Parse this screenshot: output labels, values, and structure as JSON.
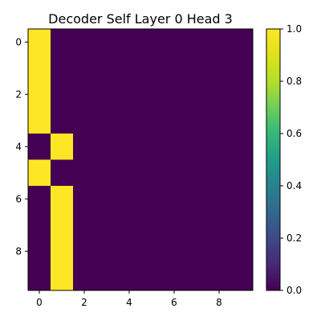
{
  "chart_data": {
    "type": "heatmap",
    "title": "Decoder Self Layer 0 Head 3",
    "rows": 10,
    "cols": 10,
    "values": [
      [
        1,
        0,
        0,
        0,
        0,
        0,
        0,
        0,
        0,
        0
      ],
      [
        1,
        0,
        0,
        0,
        0,
        0,
        0,
        0,
        0,
        0
      ],
      [
        1,
        0,
        0,
        0,
        0,
        0,
        0,
        0,
        0,
        0
      ],
      [
        1,
        0,
        0,
        0,
        0,
        0,
        0,
        0,
        0,
        0
      ],
      [
        0,
        1,
        0,
        0,
        0,
        0,
        0,
        0,
        0,
        0
      ],
      [
        1,
        0,
        0,
        0,
        0,
        0,
        0,
        0,
        0,
        0
      ],
      [
        0,
        1,
        0,
        0,
        0,
        0,
        0,
        0,
        0,
        0
      ],
      [
        0,
        1,
        0,
        0,
        0,
        0,
        0,
        0,
        0,
        0
      ],
      [
        0,
        1,
        0,
        0,
        0,
        0,
        0,
        0,
        0,
        0
      ],
      [
        0,
        1,
        0,
        0,
        0,
        0,
        0,
        0,
        0,
        0
      ]
    ],
    "x_ticks": [
      0,
      2,
      4,
      6,
      8
    ],
    "y_ticks": [
      0,
      2,
      4,
      6,
      8
    ],
    "x_tick_labels": [
      "0",
      "2",
      "4",
      "6",
      "8"
    ],
    "y_tick_labels": [
      "0",
      "2",
      "4",
      "6",
      "8"
    ],
    "colorbar": {
      "range": [
        0,
        1
      ],
      "ticks": [
        0,
        0.2,
        0.4,
        0.6,
        0.8,
        1.0
      ],
      "tick_labels": [
        "0.0",
        "0.2",
        "0.4",
        "0.6",
        "0.8",
        "1.0"
      ],
      "colormap": "viridis"
    },
    "colors": {
      "low": "#440154",
      "high": "#fde725"
    },
    "grid": false
  }
}
